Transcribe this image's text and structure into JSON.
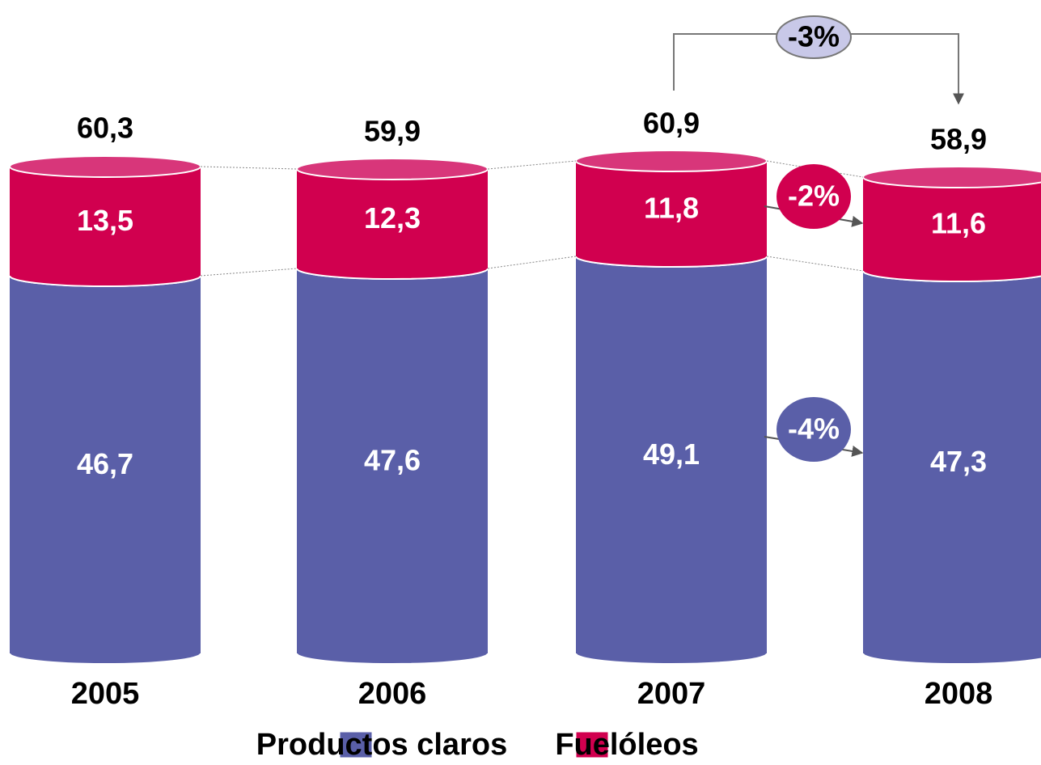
{
  "chart_data": {
    "type": "bar",
    "stacked": true,
    "categories": [
      "2005",
      "2006",
      "2007",
      "2008"
    ],
    "series": [
      {
        "name": "Productos claros",
        "color": "#5a5fa8",
        "top_color": "#8a8fd0",
        "values": [
          46.7,
          47.6,
          49.1,
          47.3
        ],
        "value_labels": [
          "46,7",
          "47,6",
          "49,1",
          "47,3"
        ]
      },
      {
        "name": "Fuelóleos",
        "color": "#d1004f",
        "top_color": "#d8367a",
        "values": [
          13.5,
          12.3,
          11.8,
          11.6
        ],
        "value_labels": [
          "13,5",
          "12,3",
          "11,8",
          "11,6"
        ]
      }
    ],
    "totals": [
      60.3,
      59.9,
      60.9,
      58.9
    ],
    "total_labels": [
      "60,3",
      "59,9",
      "60,9",
      "58,9"
    ],
    "annotations": [
      "-3%",
      "-2%",
      "-4%"
    ]
  }
}
